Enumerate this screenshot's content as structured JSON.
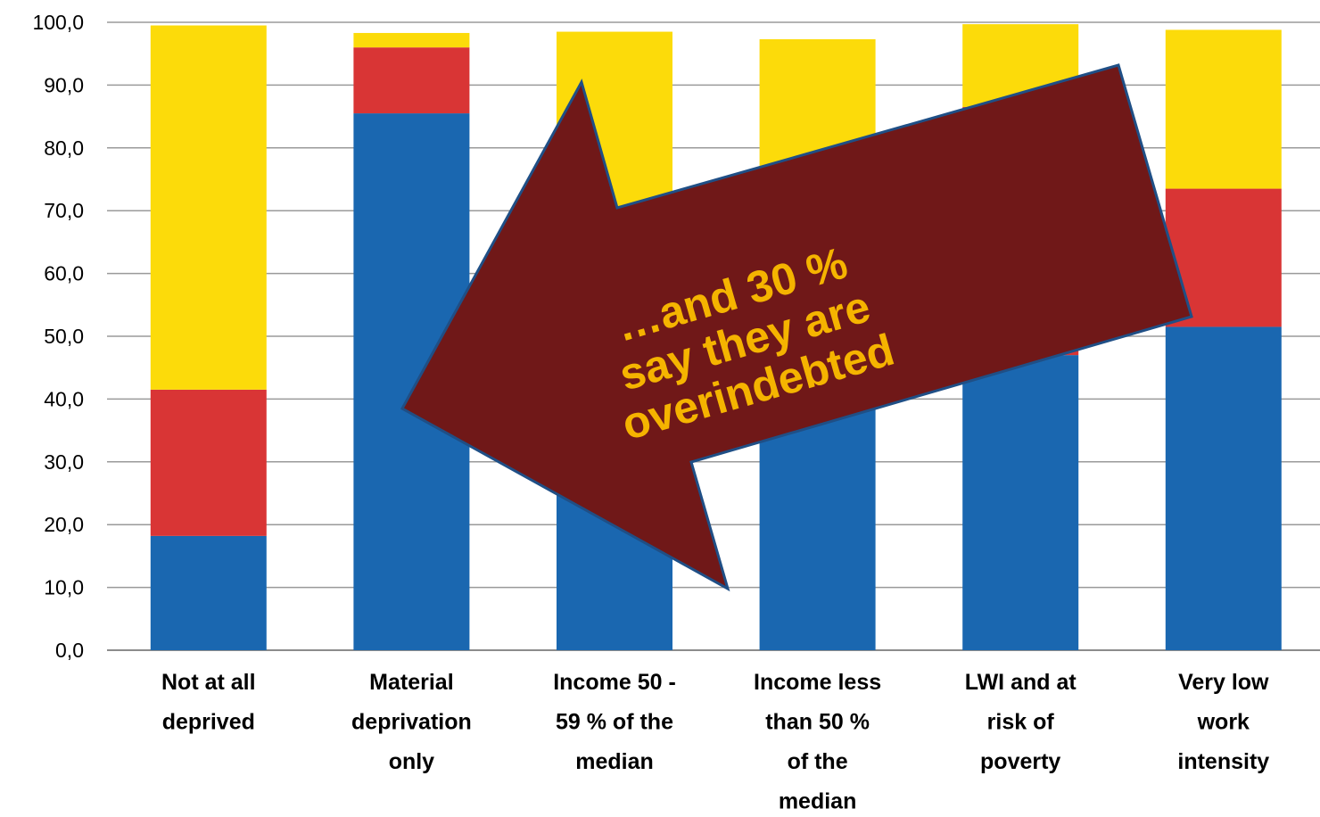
{
  "chart_data": {
    "type": "bar",
    "stacked": true,
    "categories": [
      [
        "Not at all",
        "deprived"
      ],
      [
        "Material",
        "deprivation",
        "only"
      ],
      [
        "Income 50 -",
        "59 % of the",
        "median"
      ],
      [
        "Income less",
        "than 50 %",
        "of the",
        "median"
      ],
      [
        "LWI and at",
        "risk of",
        "poverty"
      ],
      [
        "Very low",
        "work",
        "intensity"
      ]
    ],
    "series": [
      {
        "values": [
          18.2,
          85.5,
          52.0,
          47.0,
          47.0,
          51.5
        ],
        "color": "#1a67b0"
      },
      {
        "values": [
          23.3,
          10.5,
          18.0,
          30.0,
          39.5,
          22.0
        ],
        "color": "#d93535"
      },
      {
        "values": [
          58.0,
          2.3,
          28.5,
          20.3,
          13.2,
          25.3
        ],
        "color": "#fcdb0a"
      }
    ],
    "ylim": [
      0,
      100
    ],
    "yticks": [
      "0,0",
      "10,0",
      "20,0",
      "30,0",
      "40,0",
      "50,0",
      "60,0",
      "70,0",
      "80,0",
      "90,0",
      "100,0"
    ],
    "grid": true,
    "legend": "none",
    "annotation": {
      "lines": [
        "…and 30 %",
        "say they are",
        "overindebted"
      ],
      "fill": "#701818",
      "stroke": "#1f4f86",
      "text_color": "#f5b400"
    }
  }
}
